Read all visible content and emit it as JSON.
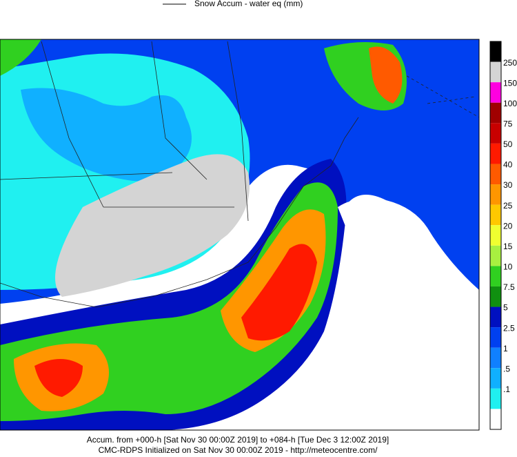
{
  "legend": {
    "title": "Snow Accum - water eq (mm)",
    "top_color": "#000000",
    "levels": [
      {
        "label": "250",
        "color": "#d4d4d4"
      },
      {
        "label": "150",
        "color": "#ff00e0"
      },
      {
        "label": "100",
        "color": "#a00000"
      },
      {
        "label": "75",
        "color": "#c80000"
      },
      {
        "label": "50",
        "color": "#ff1a00"
      },
      {
        "label": "40",
        "color": "#ff5a00"
      },
      {
        "label": "30",
        "color": "#ff9600"
      },
      {
        "label": "25",
        "color": "#ffc800"
      },
      {
        "label": "20",
        "color": "#f0ff30"
      },
      {
        "label": "15",
        "color": "#a8f040"
      },
      {
        "label": "10",
        "color": "#30d020"
      },
      {
        "label": "7.5",
        "color": "#109010"
      },
      {
        "label": "5",
        "color": "#0010c0"
      },
      {
        "label": "2.5",
        "color": "#0040f0"
      },
      {
        "label": "1",
        "color": "#1080ff"
      },
      {
        "label": ".5",
        "color": "#10b0ff"
      },
      {
        "label": ".1",
        "color": "#20f0f0"
      }
    ],
    "bottom_color": "#ffffff"
  },
  "footer": {
    "line1": "Accum. from +000-h [Sat Nov 30 00:00Z 2019] to +084-h [Tue Dec 3 12:00Z 2019]",
    "line2": "CMC-RDPS Initialized on Sat Nov 30 00:00Z 2019 - http://meteocentre.com/"
  }
}
